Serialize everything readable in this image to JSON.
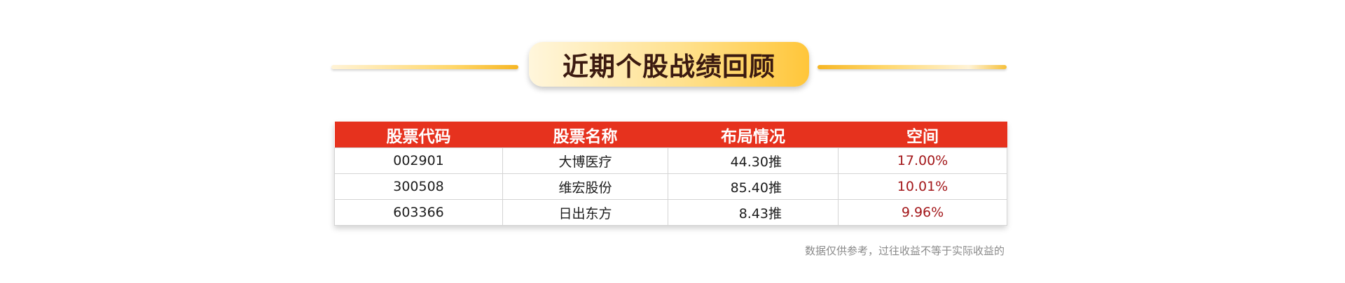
{
  "title": "近期个股战绩回顾",
  "table": {
    "headers": [
      "股票代码",
      "股票名称",
      "布局情况",
      "空间"
    ],
    "rows": [
      {
        "code": "002901",
        "name": "大博医疗",
        "layout": "44.30推",
        "space": "17.00%"
      },
      {
        "code": "300508",
        "name": "维宏股份",
        "layout": "85.40推",
        "space": "10.01%"
      },
      {
        "code": "603366",
        "name": "日出东方",
        "layout": "8.43推",
        "space": "9.96%"
      }
    ]
  },
  "disclaimer": "数据仅供参考，过往收益不等于实际收益的",
  "colors": {
    "header_red": "#e6321e",
    "space_text": "#a3171a",
    "title_text": "#3b1a10",
    "gold": "#ffc63a"
  }
}
